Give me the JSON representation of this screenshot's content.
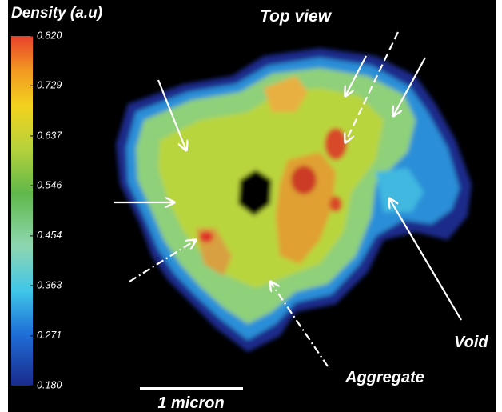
{
  "colorbar": {
    "title": "Density (a.u)",
    "lim": [
      0.18,
      0.82
    ],
    "ticks": [
      {
        "value": 0.82,
        "label": "0.820"
      },
      0.729,
      0.637,
      0.546,
      0.454,
      0.363,
      0.271,
      {
        "value": 0.18,
        "label": "0.180"
      }
    ]
  },
  "labels": {
    "view": "Top view",
    "void": "Void",
    "aggregate": "Aggregate",
    "scale": "1 micron"
  }
}
